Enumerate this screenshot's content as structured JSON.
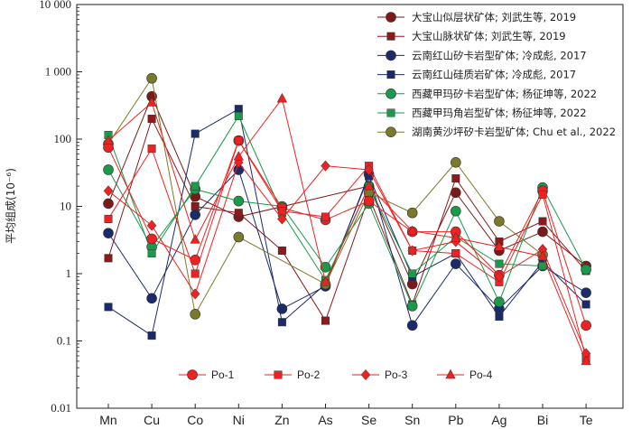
{
  "chart_data": {
    "type": "line",
    "ylabel": "平均组成(10⁻⁶)",
    "yscale": "log",
    "ylim": [
      0.01,
      10000
    ],
    "yticks": [
      "0.01",
      "0.1",
      "1",
      "10",
      "100",
      "1 000",
      "10 000"
    ],
    "categories": [
      "Mn",
      "Cu",
      "Co",
      "Ni",
      "Zn",
      "As",
      "Se",
      "Sn",
      "Pb",
      "Ag",
      "Bi",
      "Te"
    ],
    "grid": false,
    "legend_top": {
      "position": "top-right",
      "ids": [
        "ref1",
        "ref2",
        "ref3",
        "ref4",
        "ref5",
        "ref6",
        "ref7"
      ]
    },
    "legend_bottom": {
      "position": "bottom",
      "ids": [
        "po1",
        "po2",
        "po3",
        "po4"
      ]
    },
    "series": [
      {
        "id": "ref1",
        "name": "大宝山似层状矿体; 刘武生等, 2019",
        "color": "#7a1a1a",
        "marker": "circle",
        "values": [
          11,
          430,
          14,
          7,
          null,
          null,
          20,
          0.7,
          16,
          2.2,
          4.2,
          1.3
        ]
      },
      {
        "id": "ref2",
        "name": "大宝山脉状矿体; 刘武生等, 2019",
        "color": "#8b1a1a",
        "marker": "square",
        "values": [
          1.7,
          200,
          10,
          8,
          2.2,
          0.2,
          14,
          0.35,
          26,
          3,
          6,
          1.1
        ]
      },
      {
        "id": "ref3",
        "name": "云南红山矽卡岩型矿体; 冷成彪, 2017",
        "color": "#1a2a6a",
        "marker": "circle",
        "values": [
          4,
          0.43,
          7.5,
          35,
          0.3,
          0.65,
          30,
          0.17,
          1.4,
          0.3,
          1.3,
          0.52
        ]
      },
      {
        "id": "ref4",
        "name": "云南红山硅质岩矿体; 冷成彪, 2017",
        "color": "#1a2a6a",
        "marker": "square",
        "values": [
          0.32,
          0.12,
          120,
          280,
          0.19,
          0.7,
          28,
          0.9,
          2,
          0.23,
          1.5,
          0.35
        ]
      },
      {
        "id": "ref5",
        "name": "西藏甲玛矽卡岩型矿体; 杨征坤等, 2022",
        "color": "#1a9a4a",
        "marker": "circle",
        "values": [
          35,
          2.5,
          18,
          12,
          10,
          1.25,
          11,
          0.33,
          8.5,
          0.38,
          19,
          1.15
        ]
      },
      {
        "id": "ref6",
        "name": "西藏甲玛角岩型矿体; 杨征坤等, 2022",
        "color": "#1a9a4a",
        "marker": "square",
        "values": [
          115,
          2,
          20,
          220,
          8,
          0.8,
          20,
          1,
          3.5,
          1.4,
          1.3,
          null
        ]
      },
      {
        "id": "ref7",
        "name": "湖南黄沙坪矽卡岩型矿体; Chu et al., 2022",
        "color": "#7a7a2a",
        "marker": "circle",
        "values": [
          85,
          800,
          0.25,
          3.5,
          null,
          0.7,
          16,
          8,
          45,
          6,
          1.9,
          null
        ]
      },
      {
        "id": "po1",
        "name": "Po-1",
        "color": "#ee2222",
        "marker": "circle",
        "values": [
          75,
          3.3,
          1.6,
          95,
          9.5,
          6.3,
          12,
          4.2,
          4.2,
          0.95,
          17,
          0.17
        ]
      },
      {
        "id": "po2",
        "name": "Po-2",
        "color": "#ee2222",
        "marker": "square",
        "values": [
          6.5,
          72,
          1,
          95,
          8.5,
          7,
          40,
          2.2,
          2,
          0.75,
          15,
          0.055
        ]
      },
      {
        "id": "po3",
        "name": "Po-3",
        "color": "#ee2222",
        "marker": "diamond",
        "values": [
          17,
          5.2,
          0.5,
          45,
          6.5,
          40,
          35,
          2.2,
          3,
          0.9,
          2.3,
          0.065
        ]
      },
      {
        "id": "po4",
        "name": "Po-4",
        "color": "#ee2222",
        "marker": "triangle",
        "values": [
          95,
          350,
          3.2,
          55,
          400,
          0.75,
          20,
          4.3,
          3.4,
          2.5,
          1.8,
          0.05
        ]
      }
    ]
  }
}
